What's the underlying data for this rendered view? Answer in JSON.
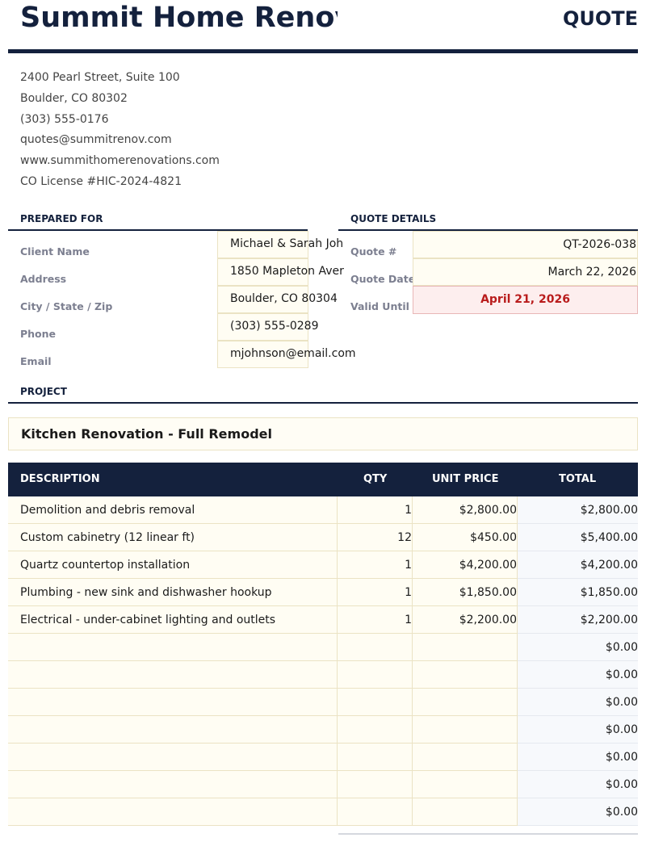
{
  "header": {
    "company": "Summit Home Renovations",
    "doc_type": "QUOTE"
  },
  "company_info": [
    "2400 Pearl Street, Suite 100",
    "Boulder, CO 80302",
    "(303) 555-0176",
    "quotes@summitrenov.com",
    "www.summithomerenovations.com",
    "CO License #HIC-2024-4821"
  ],
  "prepared_for": {
    "heading": "PREPARED FOR",
    "fields": [
      {
        "label": "Client Name",
        "value": "Michael & Sarah Joh"
      },
      {
        "label": "Address",
        "value": "1850 Mapleton Aver"
      },
      {
        "label": "City / State / Zip",
        "value": "Boulder, CO 80304"
      },
      {
        "label": "Phone",
        "value": "(303) 555-0289"
      },
      {
        "label": "Email",
        "value": "mjohnson@email.com"
      }
    ]
  },
  "quote_details": {
    "heading": "QUOTE DETAILS",
    "fields": [
      {
        "label": "Quote #",
        "value": "QT-2026-038"
      },
      {
        "label": "Quote Date",
        "value": "March 22, 2026"
      },
      {
        "label": "Valid Until",
        "value": "April 21, 2026"
      }
    ]
  },
  "project": {
    "heading": "PROJECT",
    "name": "Kitchen Renovation - Full Remodel"
  },
  "table": {
    "headers": [
      "DESCRIPTION",
      "QTY",
      "UNIT PRICE",
      "TOTAL"
    ],
    "rows": [
      [
        "Demolition and debris removal",
        "1",
        "$2,800.00",
        "$2,800.00"
      ],
      [
        "Custom cabinetry (12 linear ft)",
        "12",
        "$450.00",
        "$5,400.00"
      ],
      [
        "Quartz countertop installation",
        "1",
        "$4,200.00",
        "$4,200.00"
      ],
      [
        "Plumbing - new sink and dishwasher hookup",
        "1",
        "$1,850.00",
        "$1,850.00"
      ],
      [
        "Electrical - under-cabinet lighting and outlets",
        "1",
        "$2,200.00",
        "$2,200.00"
      ],
      [
        "",
        "",
        "",
        "$0.00"
      ],
      [
        "",
        "",
        "",
        "$0.00"
      ],
      [
        "",
        "",
        "",
        "$0.00"
      ],
      [
        "",
        "",
        "",
        "$0.00"
      ],
      [
        "",
        "",
        "",
        "$0.00"
      ],
      [
        "",
        "",
        "",
        "$0.00"
      ],
      [
        "",
        "",
        "",
        "$0.00"
      ]
    ]
  },
  "colors": {
    "navy": "#14213d",
    "valid_until": "#b91c1c",
    "input_cell": "#fffdf3"
  }
}
